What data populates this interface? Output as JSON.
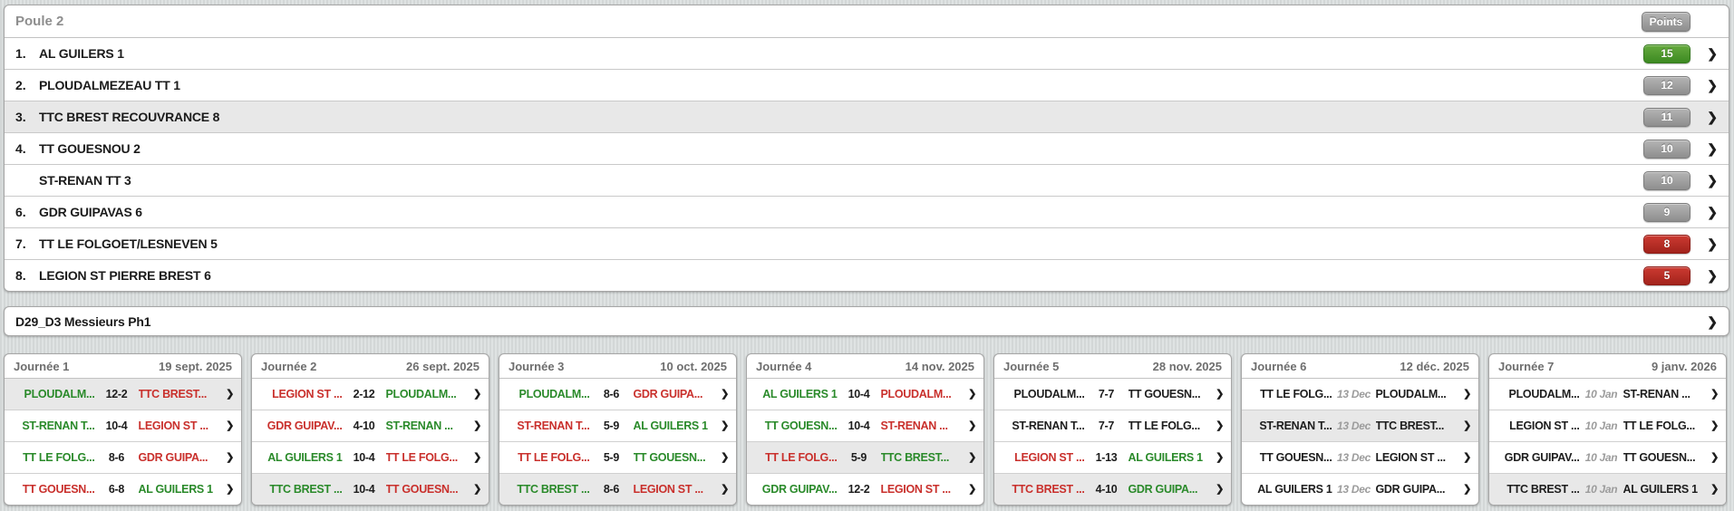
{
  "colors": {
    "win": "#2a8a2a",
    "loss": "#c9302c",
    "neutral": "#1d1d1d",
    "highlight": "#e8e8e8",
    "badge_green": "#3c8a22",
    "badge_gray": "#8e8e8e",
    "badge_red": "#a2231c"
  },
  "standings": {
    "title": "Poule 2",
    "points_label": "Points",
    "rows": [
      {
        "rank": "1.",
        "team": "AL GUILERS 1",
        "points": "15",
        "badge": "green",
        "highlight": false
      },
      {
        "rank": "2.",
        "team": "PLOUDALMEZEAU TT 1",
        "points": "12",
        "badge": "gray",
        "highlight": false
      },
      {
        "rank": "3.",
        "team": "TTC BREST RECOUVRANCE 8",
        "points": "11",
        "badge": "gray",
        "highlight": true
      },
      {
        "rank": "4.",
        "team": "TT GOUESNOU 2",
        "points": "10",
        "badge": "gray",
        "highlight": false
      },
      {
        "rank": "",
        "team": "ST-RENAN TT 3",
        "points": "10",
        "badge": "gray",
        "highlight": false
      },
      {
        "rank": "6.",
        "team": "GDR GUIPAVAS 6",
        "points": "9",
        "badge": "gray",
        "highlight": false
      },
      {
        "rank": "7.",
        "team": "TT LE FOLGOET/LESNEVEN 5",
        "points": "8",
        "badge": "red",
        "highlight": false
      },
      {
        "rank": "8.",
        "team": "LEGION ST PIERRE BREST 6",
        "points": "5",
        "badge": "red",
        "highlight": false
      }
    ]
  },
  "division": {
    "label": "D29_D3 Messieurs Ph1"
  },
  "rounds": [
    {
      "title": "Journée 1",
      "date": "19 sept. 2025",
      "matches": [
        {
          "home": "PLOUDALM...",
          "home_result": "win",
          "mid": "12-2",
          "mid_type": "score",
          "away": "TTC BREST...",
          "away_result": "loss",
          "highlight": true
        },
        {
          "home": "ST-RENAN T...",
          "home_result": "win",
          "mid": "10-4",
          "mid_type": "score",
          "away": "LEGION ST ...",
          "away_result": "loss",
          "highlight": false
        },
        {
          "home": "TT LE FOLG...",
          "home_result": "win",
          "mid": "8-6",
          "mid_type": "score",
          "away": "GDR GUIPA...",
          "away_result": "loss",
          "highlight": false
        },
        {
          "home": "TT GOUESN...",
          "home_result": "loss",
          "mid": "6-8",
          "mid_type": "score",
          "away": "AL GUILERS 1",
          "away_result": "win",
          "highlight": false
        }
      ]
    },
    {
      "title": "Journée 2",
      "date": "26 sept. 2025",
      "matches": [
        {
          "home": "LEGION ST ...",
          "home_result": "loss",
          "mid": "2-12",
          "mid_type": "score",
          "away": "PLOUDALM...",
          "away_result": "win",
          "highlight": false
        },
        {
          "home": "GDR GUIPAV...",
          "home_result": "loss",
          "mid": "4-10",
          "mid_type": "score",
          "away": "ST-RENAN ...",
          "away_result": "win",
          "highlight": false
        },
        {
          "home": "AL GUILERS 1",
          "home_result": "win",
          "mid": "10-4",
          "mid_type": "score",
          "away": "TT LE FOLG...",
          "away_result": "loss",
          "highlight": false
        },
        {
          "home": "TTC BREST ...",
          "home_result": "win",
          "mid": "10-4",
          "mid_type": "score",
          "away": "TT GOUESN...",
          "away_result": "loss",
          "highlight": true
        }
      ]
    },
    {
      "title": "Journée 3",
      "date": "10 oct. 2025",
      "matches": [
        {
          "home": "PLOUDALM...",
          "home_result": "win",
          "mid": "8-6",
          "mid_type": "score",
          "away": "GDR GUIPA...",
          "away_result": "loss",
          "highlight": false
        },
        {
          "home": "ST-RENAN T...",
          "home_result": "loss",
          "mid": "5-9",
          "mid_type": "score",
          "away": "AL GUILERS 1",
          "away_result": "win",
          "highlight": false
        },
        {
          "home": "TT LE FOLG...",
          "home_result": "loss",
          "mid": "5-9",
          "mid_type": "score",
          "away": "TT GOUESN...",
          "away_result": "win",
          "highlight": false
        },
        {
          "home": "TTC BREST ...",
          "home_result": "win",
          "mid": "8-6",
          "mid_type": "score",
          "away": "LEGION ST ...",
          "away_result": "loss",
          "highlight": true
        }
      ]
    },
    {
      "title": "Journée 4",
      "date": "14 nov. 2025",
      "matches": [
        {
          "home": "AL GUILERS 1",
          "home_result": "win",
          "mid": "10-4",
          "mid_type": "score",
          "away": "PLOUDALM...",
          "away_result": "loss",
          "highlight": false
        },
        {
          "home": "TT GOUESN...",
          "home_result": "win",
          "mid": "10-4",
          "mid_type": "score",
          "away": "ST-RENAN ...",
          "away_result": "loss",
          "highlight": false
        },
        {
          "home": "TT LE FOLG...",
          "home_result": "loss",
          "mid": "5-9",
          "mid_type": "score",
          "away": "TTC BREST...",
          "away_result": "win",
          "highlight": true
        },
        {
          "home": "GDR GUIPAV...",
          "home_result": "win",
          "mid": "12-2",
          "mid_type": "score",
          "away": "LEGION ST ...",
          "away_result": "loss",
          "highlight": false
        }
      ]
    },
    {
      "title": "Journée 5",
      "date": "28 nov. 2025",
      "matches": [
        {
          "home": "PLOUDALM...",
          "home_result": "draw",
          "mid": "7-7",
          "mid_type": "score",
          "away": "TT GOUESN...",
          "away_result": "draw",
          "highlight": false
        },
        {
          "home": "ST-RENAN T...",
          "home_result": "draw",
          "mid": "7-7",
          "mid_type": "score",
          "away": "TT LE FOLG...",
          "away_result": "draw",
          "highlight": false
        },
        {
          "home": "LEGION ST ...",
          "home_result": "loss",
          "mid": "1-13",
          "mid_type": "score",
          "away": "AL GUILERS 1",
          "away_result": "win",
          "highlight": false
        },
        {
          "home": "TTC BREST ...",
          "home_result": "loss",
          "mid": "4-10",
          "mid_type": "score",
          "away": "GDR GUIPA...",
          "away_result": "win",
          "highlight": true
        }
      ]
    },
    {
      "title": "Journée 6",
      "date": "12 déc. 2025",
      "matches": [
        {
          "home": "TT LE FOLG...",
          "home_result": "none",
          "mid": "13 Dec",
          "mid_type": "date",
          "away": "PLOUDALM...",
          "away_result": "none",
          "highlight": false
        },
        {
          "home": "ST-RENAN T...",
          "home_result": "none",
          "mid": "13 Dec",
          "mid_type": "date",
          "away": "TTC BREST...",
          "away_result": "none",
          "highlight": true
        },
        {
          "home": "TT GOUESN...",
          "home_result": "none",
          "mid": "13 Dec",
          "mid_type": "date",
          "away": "LEGION ST ...",
          "away_result": "none",
          "highlight": false
        },
        {
          "home": "AL GUILERS 1",
          "home_result": "none",
          "mid": "13 Dec",
          "mid_type": "date",
          "away": "GDR GUIPA...",
          "away_result": "none",
          "highlight": false
        }
      ]
    },
    {
      "title": "Journée 7",
      "date": "9 janv. 2026",
      "matches": [
        {
          "home": "PLOUDALM...",
          "home_result": "none",
          "mid": "10 Jan",
          "mid_type": "date",
          "away": "ST-RENAN ...",
          "away_result": "none",
          "highlight": false
        },
        {
          "home": "LEGION ST ...",
          "home_result": "none",
          "mid": "10 Jan",
          "mid_type": "date",
          "away": "TT LE FOLG...",
          "away_result": "none",
          "highlight": false
        },
        {
          "home": "GDR GUIPAV...",
          "home_result": "none",
          "mid": "10 Jan",
          "mid_type": "date",
          "away": "TT GOUESN...",
          "away_result": "none",
          "highlight": false
        },
        {
          "home": "TTC BREST ...",
          "home_result": "none",
          "mid": "10 Jan",
          "mid_type": "date",
          "away": "AL GUILERS 1",
          "away_result": "none",
          "highlight": true
        }
      ]
    }
  ]
}
